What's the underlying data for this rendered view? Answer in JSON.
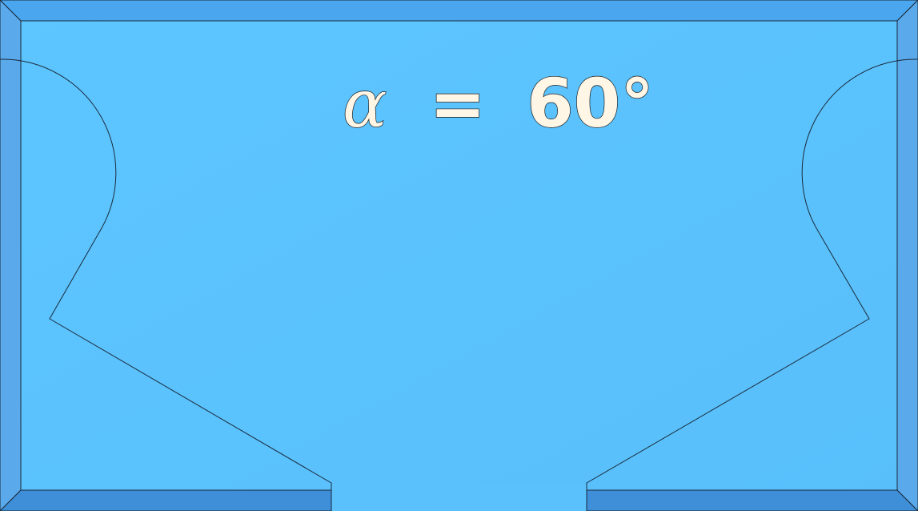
{
  "label": {
    "symbol": "α",
    "equals": "=",
    "value": "60°"
  },
  "colors": {
    "face": "#5bc3fd",
    "bevel_top": "#4aa6ee",
    "bevel_side": "#5aa9ea",
    "bevel_bottom": "#3e8fd8",
    "outline": "#1a2a3a",
    "label_fill": "#fff6e6"
  }
}
